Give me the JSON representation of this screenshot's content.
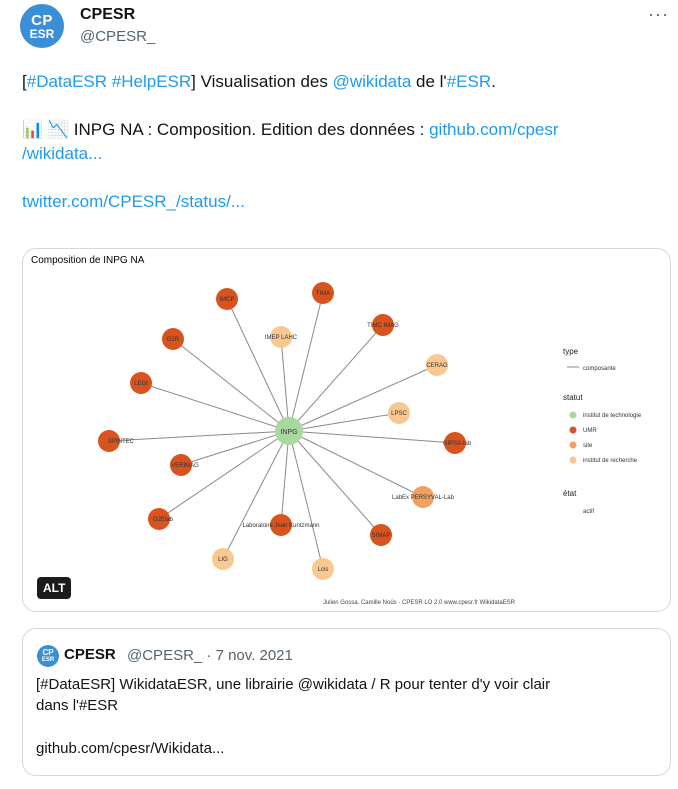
{
  "author": {
    "avatar_line1": "CP",
    "avatar_line2": "ESR",
    "display_name": "CPESR",
    "handle": "@CPESR_",
    "more_label": "···"
  },
  "tweet": {
    "line1": {
      "pre": "[",
      "tag1": "#DataESR",
      "sp1": " ",
      "tag2": "#HelpESR",
      "mid": "] Visualisation des ",
      "mention": "@wikidata",
      "mid2": " de l'",
      "tag3": "#ESR",
      "post": "."
    },
    "line2": {
      "emoji": "📊 📉",
      "text": " INPG NA : Composition.     Edition des données : ",
      "link": "github.com/cpesr"
    },
    "line3_link": "/wikidata...",
    "line4_link": "twitter.com/CPESR_/status/..."
  },
  "media": {
    "title": "Composition de INPG NA",
    "alt_label": "ALT",
    "credit": "Julien Gossa, Camille Noûs · CPESR LO 2.0 www.cpesr.fr WikidataESR",
    "legend": {
      "type_heading": "type",
      "type_item": "composante",
      "statut_heading": "statut",
      "statut_items": [
        {
          "label": "institut de technologie",
          "color": "#a8d8a0"
        },
        {
          "label": "UMR",
          "color": "#d9531e"
        },
        {
          "label": "site",
          "color": "#f0a060"
        },
        {
          "label": "institut de recherche",
          "color": "#f8c890"
        }
      ],
      "etat_heading": "état",
      "etat_item": "actif"
    },
    "colors": {
      "center": "#a8d8a0",
      "umr": "#d9531e",
      "site": "#f0a060",
      "research": "#f8c890",
      "edge": "#8a8a8a"
    },
    "center_label": "INPG",
    "nodes": [
      {
        "label": "IMCP",
        "kind": "umr"
      },
      {
        "label": "TIMA",
        "kind": "umr"
      },
      {
        "label": "IMEP LAHC",
        "kind": "research"
      },
      {
        "label": "TIMC IMAG",
        "kind": "umr"
      },
      {
        "label": "G2R",
        "kind": "umr"
      },
      {
        "label": "CERAG",
        "kind": "research"
      },
      {
        "label": "LEGI",
        "kind": "umr"
      },
      {
        "label": "LPSC",
        "kind": "research"
      },
      {
        "label": "SPINTEC",
        "kind": "umr"
      },
      {
        "label": "GIPSA-lab",
        "kind": "umr"
      },
      {
        "label": "VERIMAG",
        "kind": "umr"
      },
      {
        "label": "LabEx PERSYVAL-Lab",
        "kind": "site"
      },
      {
        "label": "G2Elab",
        "kind": "umr"
      },
      {
        "label": "Laboratoire Jean Kuntzmann",
        "kind": "umr"
      },
      {
        "label": "SIMAP",
        "kind": "umr"
      },
      {
        "label": "LIG",
        "kind": "research"
      },
      {
        "label": "Lcis",
        "kind": "research"
      }
    ]
  },
  "quote": {
    "avatar_line1": "CP",
    "avatar_line2": "ESR",
    "name": "CPESR",
    "meta": "@CPESR_ · 7 nov. 2021",
    "text_line1": "[#DataESR] WikidataESR, une librairie @wikidata / R pour tenter d'y voir clair",
    "text_line2": "dans l'#ESR",
    "link": "github.com/cpesr/Wikidata..."
  }
}
